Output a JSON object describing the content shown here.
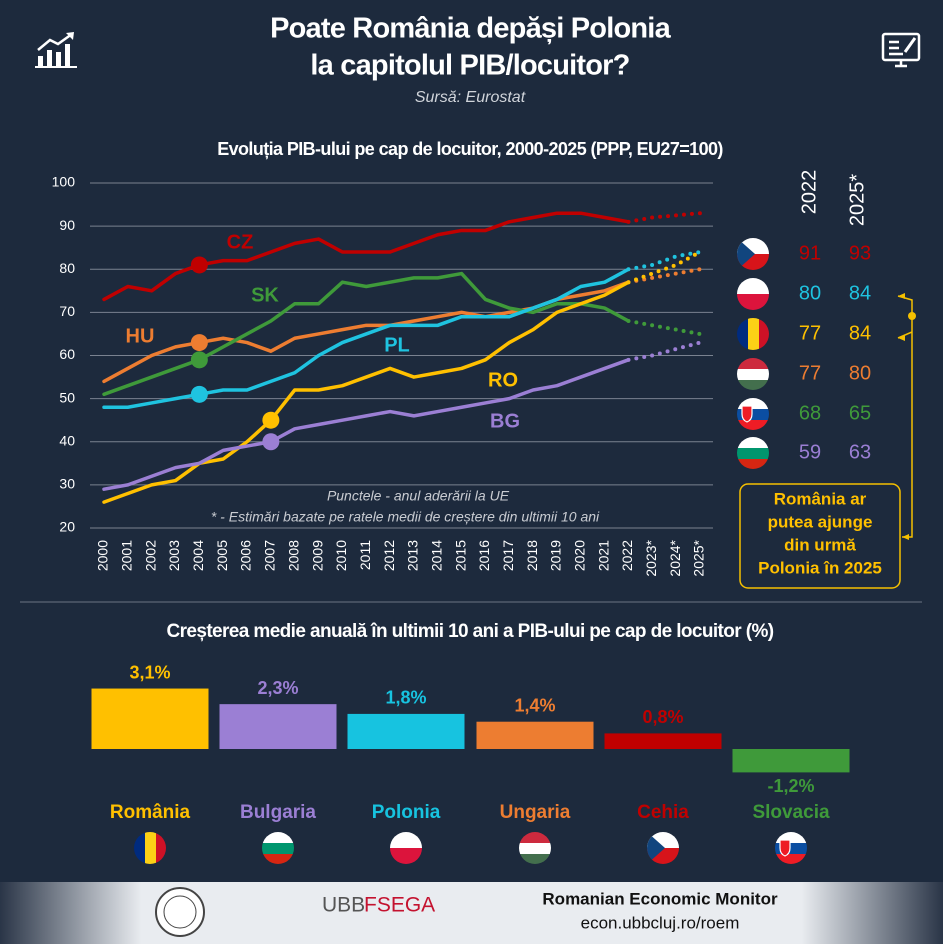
{
  "header": {
    "title_line1": "Poate România depăși Polonia",
    "title_line2": "la capitolul PIB/locuitor?",
    "source": "Sursă: Eurostat"
  },
  "chart_data": [
    {
      "type": "line",
      "title": "Evoluția PIB-ului pe cap de locuitor, 2000-2025 (PPP, EU27=100)",
      "categories": [
        "2000",
        "2001",
        "2002",
        "2003",
        "2004",
        "2005",
        "2006",
        "2007",
        "2008",
        "2009",
        "2010",
        "2011",
        "2012",
        "2013",
        "2014",
        "2015",
        "2016",
        "2017",
        "2018",
        "2019",
        "2020",
        "2021",
        "2022",
        "2023*",
        "2024*",
        "2025*"
      ],
      "ylim": [
        20,
        100
      ],
      "yticks": [
        20,
        30,
        40,
        50,
        60,
        70,
        80,
        90,
        100
      ],
      "grid": true,
      "series": [
        {
          "name": "CZ",
          "color": "#c00000",
          "accession": "2004",
          "values": [
            73,
            76,
            75,
            79,
            81,
            82,
            82,
            84,
            86,
            87,
            84,
            84,
            84,
            86,
            88,
            89,
            89,
            91,
            92,
            93,
            93,
            92,
            91,
            92,
            92.5,
            93
          ]
        },
        {
          "name": "HU",
          "color": "#ed7d31",
          "accession": "2004",
          "values": [
            54,
            57,
            60,
            62,
            63,
            64,
            63,
            61,
            64,
            65,
            66,
            67,
            67,
            68,
            69,
            70,
            69,
            70,
            71,
            73,
            74,
            75,
            77,
            78,
            79,
            80
          ]
        },
        {
          "name": "SK",
          "color": "#3f9a3a",
          "accession": "2004",
          "values": [
            51,
            53,
            55,
            57,
            59,
            62,
            65,
            68,
            72,
            72,
            77,
            76,
            77,
            78,
            78,
            79,
            73,
            71,
            70,
            72,
            72,
            71,
            68,
            67,
            66,
            65
          ]
        },
        {
          "name": "PL",
          "color": "#1fc3e0",
          "accession": "2004",
          "values": [
            48,
            48,
            49,
            50,
            51,
            52,
            52,
            54,
            56,
            60,
            63,
            65,
            67,
            67,
            67,
            69,
            69,
            69,
            71,
            73,
            76,
            77,
            80,
            81,
            83,
            84
          ]
        },
        {
          "name": "RO",
          "color": "#ffc000",
          "accession": "2007",
          "values": [
            26,
            28,
            30,
            31,
            35,
            36,
            40,
            45,
            52,
            52,
            53,
            55,
            57,
            55,
            56,
            57,
            59,
            63,
            66,
            70,
            72,
            74,
            77,
            79,
            81,
            84
          ]
        },
        {
          "name": "BG",
          "color": "#9b7fd4",
          "accession": "2007",
          "values": [
            29,
            30,
            32,
            34,
            35,
            38,
            39,
            40,
            43,
            44,
            45,
            46,
            47,
            46,
            47,
            48,
            49,
            50,
            52,
            53,
            55,
            57,
            59,
            60,
            61.5,
            63
          ]
        }
      ],
      "annotations": [
        "Punctele - anul aderării la UE",
        "* - Estimări bazate pe ratele medii de creștere din ultimii 10 ani"
      ]
    },
    {
      "type": "bar",
      "title": "Creșterea medie anuală în ultimii 10 ani a PIB-ului pe cap de locuitor (%)",
      "categories": [
        "România",
        "Bulgaria",
        "Polonia",
        "Ungaria",
        "Cehia",
        "Slovacia"
      ],
      "values": [
        3.1,
        2.3,
        1.8,
        1.4,
        0.8,
        -1.2
      ],
      "value_labels": [
        "3,1%",
        "2,3%",
        "1,8%",
        "1,4%",
        "0,8%",
        "-1,2%"
      ],
      "colors": [
        "#ffc000",
        "#9b7fd4",
        "#17c3e0",
        "#ed7d31",
        "#c00000",
        "#3f9a3a"
      ]
    }
  ],
  "table": {
    "columns": [
      "2022",
      "2025*"
    ],
    "rows": [
      [
        91,
        93
      ],
      [
        80,
        84
      ],
      [
        77,
        84
      ],
      [
        77,
        80
      ],
      [
        68,
        65
      ],
      [
        59,
        63
      ]
    ],
    "colors": [
      "#c00000",
      "#1fc3e0",
      "#ffc000",
      "#ed7d31",
      "#3f9a3a",
      "#9b7fd4"
    ]
  },
  "callout": [
    "România ar",
    "putea ajunge",
    "din urmă",
    "Polonia în 2025"
  ],
  "footer": {
    "logo1": "UBB",
    "logo2": "FSEGA",
    "title": "Romanian Economic Monitor",
    "url": "econ.ubbcluj.ro/roem"
  }
}
